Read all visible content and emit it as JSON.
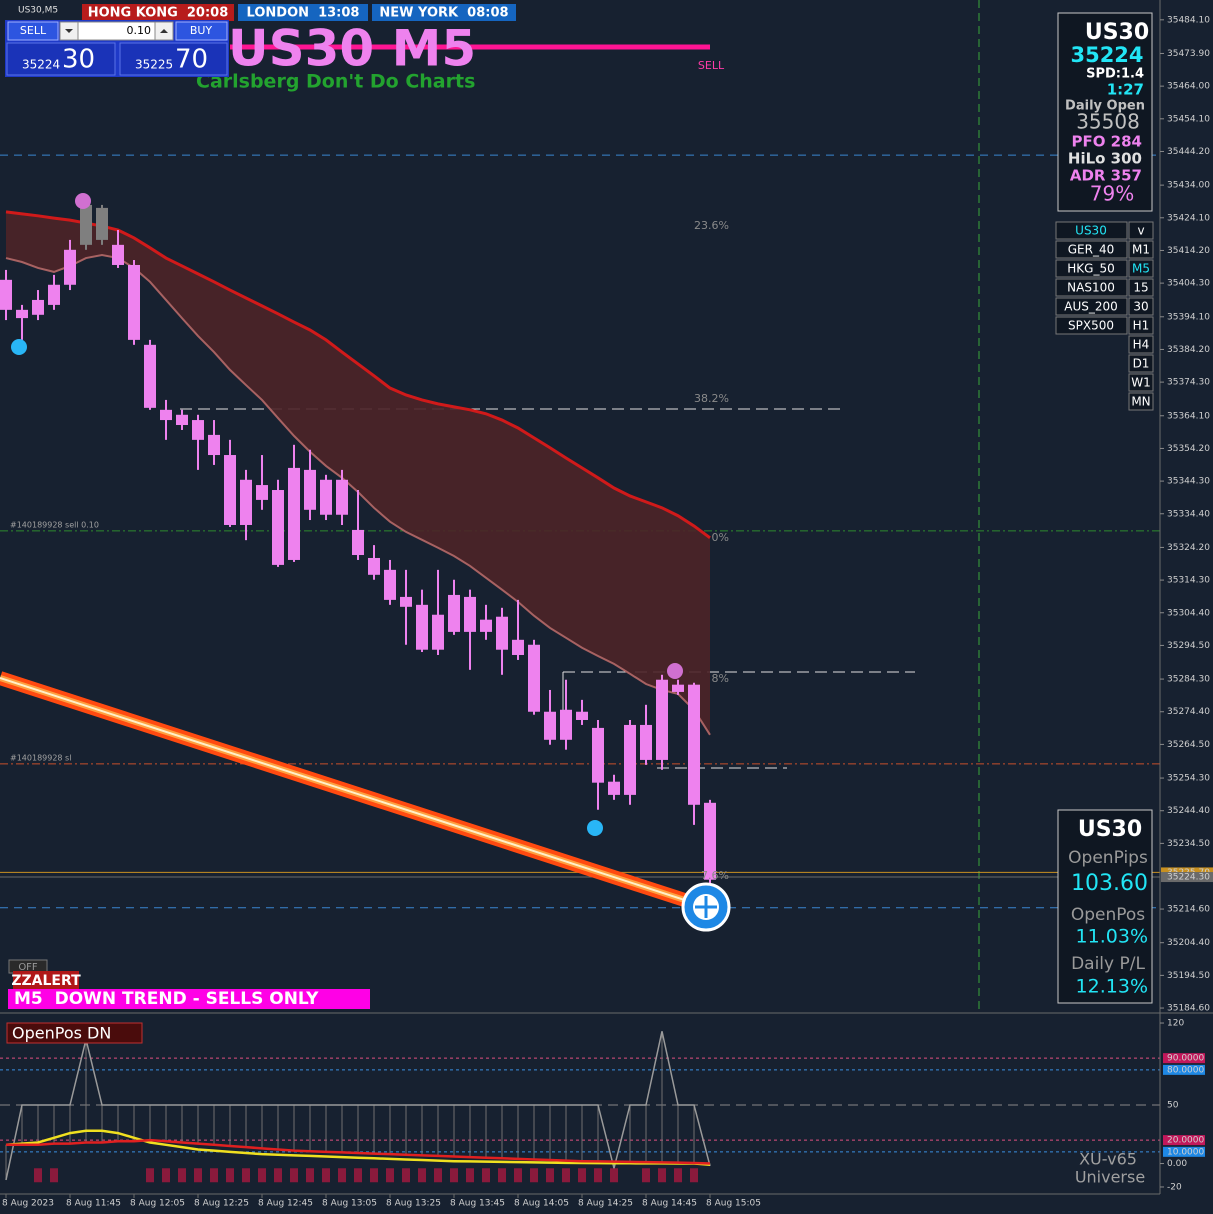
{
  "ui": {
    "window_title": "US30,M5",
    "sessions": {
      "hong_kong": "HONG KONG  20:08",
      "london": "LONDON  13:08",
      "new_york": "NEW YORK  08:08"
    },
    "trade_panel": {
      "sell": "SELL",
      "buy": "BUY",
      "lot": "0.10",
      "bid_big": "35224",
      "bid_small": "30",
      "ask_big": "35225",
      "ask_small": "70"
    },
    "title": "US30 M5",
    "subtitle": "Carlsberg Don't Do Charts",
    "sell_tag": "SELL",
    "fib": {
      "f236": "23.6%",
      "f382": "38.2%",
      "f0": "0%",
      "f8": "8%",
      "f76": "7.6%"
    },
    "info_panel": {
      "symbol": "US30",
      "price": "35224",
      "spread": "SPD:1.4",
      "timer": "1:27",
      "daily_open_label": "Daily Open",
      "daily_open": "35508",
      "pfo": "PFO 284",
      "hilo": "HiLo 300",
      "adr": "ADR 357",
      "adr_pct": "79%"
    },
    "symbols": [
      [
        "US30",
        "v"
      ],
      [
        "GER_40",
        "M1"
      ],
      [
        "HKG_50",
        "M5"
      ],
      [
        "NAS100",
        "15"
      ],
      [
        "AUS_200",
        "30"
      ],
      [
        "SPX500",
        "H1"
      ],
      [
        null,
        "H4"
      ],
      [
        null,
        "D1"
      ],
      [
        null,
        "W1"
      ],
      [
        null,
        "MN"
      ]
    ],
    "pos_panel": {
      "symbol": "US30",
      "open_pips_label": "OpenPips",
      "open_pips": "103.60",
      "open_pos_label": "OpenPos",
      "open_pos": "11.03%",
      "daily_pl_label": "Daily P/L",
      "daily_pl": "12.13%"
    },
    "off": "OFF",
    "zzalert": "ZZALERT",
    "trend": "M5  DOWN TREND - SELLS ONLY",
    "indicator": {
      "name": "OpenPos DN",
      "version": "XU-v65",
      "universe": "Universe"
    }
  },
  "chart_data": [
    {
      "type": "candlestick",
      "x": [
        "8 Aug 2023",
        null,
        null,
        null,
        "8 Aug 11:45",
        null,
        null,
        null,
        "8 Aug 12:05",
        null,
        null,
        null,
        "8 Aug 12:25",
        null,
        null,
        null,
        "8 Aug 12:45",
        null,
        null,
        null,
        "8 Aug 13:05",
        null,
        null,
        null,
        "8 Aug 13:25",
        null,
        null,
        null,
        "8 Aug 13:45",
        null,
        null,
        null,
        "8 Aug 14:05",
        null,
        null,
        null,
        "8 Aug 14:25",
        null,
        null,
        null,
        "8 Aug 14:45",
        null,
        null,
        null,
        "8 Aug 15:05"
      ],
      "open": [
        35405.3,
        35396.2,
        35399.2,
        35403.8,
        35414.4,
        35415.9,
        35417.4,
        35415.9,
        35409.8,
        35385.6,
        35365.9,
        35364.4,
        35362.8,
        35358.3,
        35352.2,
        35344.7,
        35343.1,
        35341.6,
        35348.3,
        35347.7,
        35344.7,
        35344.7,
        35329.5,
        35321.0,
        35317.4,
        35309.2,
        35306.8,
        35303.8,
        35309.8,
        35309.2,
        35302.3,
        35303.2,
        35296.2,
        35294.7,
        35274.4,
        35275.0,
        35274.4,
        35269.5,
        35253.2,
        35270.4,
        35270.4,
        35284.1,
        35282.6,
        35282.6,
        35246.8
      ],
      "high": [
        35408.3,
        35397.7,
        35402.2,
        35406.8,
        35417.4,
        35429.5,
        35428.0,
        35420.4,
        35411.3,
        35387.1,
        35368.9,
        35365.9,
        35364.4,
        35362.8,
        35356.8,
        35347.7,
        35352.2,
        35344.7,
        35355.3,
        35353.8,
        35346.2,
        35347.7,
        35341.6,
        35324.9,
        35320.4,
        35317.4,
        35311.4,
        35317.4,
        35314.4,
        35311.4,
        35306.8,
        35305.9,
        35308.3,
        35296.2,
        35281.0,
        35284.1,
        35278.0,
        35271.9,
        35255.3,
        35271.9,
        35276.5,
        35285.6,
        35284.1,
        35283.2,
        35247.7
      ],
      "low": [
        35393.1,
        35387.1,
        35393.1,
        35396.2,
        35402.2,
        35414.4,
        35415.9,
        35408.9,
        35385.6,
        35365.9,
        35356.8,
        35359.8,
        35347.7,
        35349.2,
        35330.4,
        35326.4,
        35335.6,
        35318.3,
        35319.8,
        35332.5,
        35332.5,
        35331.0,
        35320.4,
        35314.4,
        35306.8,
        35294.7,
        35292.5,
        35291.6,
        35297.7,
        35287.1,
        35296.2,
        35285.6,
        35290.1,
        35273.5,
        35264.4,
        35262.9,
        35270.4,
        35244.7,
        35247.7,
        35246.2,
        35258.3,
        35256.8,
        35279.5,
        35240.1,
        35222.0
      ],
      "close": [
        35396.2,
        35393.7,
        35394.7,
        35397.7,
        35403.8,
        35428.0,
        35427.1,
        35409.8,
        35387.1,
        35366.5,
        35362.8,
        35361.3,
        35356.8,
        35352.2,
        35331.0,
        35331.0,
        35338.6,
        35318.9,
        35320.4,
        35335.6,
        35334.1,
        35334.1,
        35321.9,
        35315.9,
        35308.3,
        35306.2,
        35293.2,
        35293.2,
        35298.6,
        35298.6,
        35298.6,
        35293.2,
        35291.6,
        35274.4,
        35265.9,
        35265.9,
        35271.9,
        35252.9,
        35249.2,
        35249.2,
        35259.8,
        35259.8,
        35280.4,
        35246.2,
        35223.5
      ],
      "up_color": "#7f7f7f",
      "down_color": "#ee82ee",
      "ribbon_upper": [
        35425.9,
        35425.3,
        35424.7,
        35424.0,
        35423.4,
        35422.5,
        35421.6,
        35420.4,
        35418.0,
        35415.0,
        35411.9,
        35409.5,
        35407.1,
        35404.7,
        35402.2,
        35399.8,
        35397.4,
        35395.0,
        35392.5,
        35390.1,
        35387.1,
        35383.4,
        35379.8,
        35376.2,
        35372.5,
        35370.4,
        35368.9,
        35367.7,
        35366.8,
        35365.9,
        35364.7,
        35362.8,
        35360.4,
        35357.4,
        35354.4,
        35351.3,
        35348.3,
        35345.3,
        35342.2,
        35339.8,
        35338.0,
        35336.2,
        35333.8,
        35330.7,
        35327.1
      ],
      "ribbon_lower": [
        35411.9,
        35410.7,
        35408.9,
        35407.7,
        35409.5,
        35411.9,
        35412.8,
        35411.9,
        35408.9,
        35404.7,
        35399.2,
        35393.7,
        35388.3,
        35383.4,
        35378.0,
        35373.4,
        35368.9,
        35363.4,
        35358.0,
        35353.2,
        35348.9,
        35345.3,
        35341.0,
        35336.2,
        35332.0,
        35328.9,
        35326.5,
        35324.1,
        35321.6,
        35318.6,
        35315.0,
        35311.4,
        35307.7,
        35303.5,
        35299.8,
        35296.8,
        35293.8,
        35291.3,
        35288.9,
        35285.9,
        35282.8,
        35281.0,
        35279.8,
        35275.0,
        35267.4
      ],
      "ribbon_upper_color": "#d01a1a",
      "ribbon_lower_color": "#a86262",
      "ribbon_fill": "#4d2328",
      "ylim": [
        35183.4,
        35489.5
      ],
      "yticks": [
        {
          "value": 35484.1,
          "label": "35484.10"
        },
        {
          "value": 35473.9,
          "label": "35473.90"
        },
        {
          "value": 35464.0,
          "label": "35464.00"
        },
        {
          "value": 35454.1,
          "label": "35454.10"
        },
        {
          "value": 35444.2,
          "label": "35444.20"
        },
        {
          "value": 35434.0,
          "label": "35434.00"
        },
        {
          "value": 35424.1,
          "label": "35424.10"
        },
        {
          "value": 35414.2,
          "label": "35414.20"
        },
        {
          "value": 35404.3,
          "label": "35404.30"
        },
        {
          "value": 35394.1,
          "label": "35394.10"
        },
        {
          "value": 35384.2,
          "label": "35384.20"
        },
        {
          "value": 35374.3,
          "label": "35374.30"
        },
        {
          "value": 35364.1,
          "label": "35364.10"
        },
        {
          "value": 35354.2,
          "label": "35354.20"
        },
        {
          "value": 35344.3,
          "label": "35344.30"
        },
        {
          "value": 35334.4,
          "label": "35334.40"
        },
        {
          "value": 35324.2,
          "label": "35324.20"
        },
        {
          "value": 35314.3,
          "label": "35314.30"
        },
        {
          "value": 35304.4,
          "label": "35304.40"
        },
        {
          "value": 35294.5,
          "label": "35294.50"
        },
        {
          "value": 35284.3,
          "label": "35284.30"
        },
        {
          "value": 35274.4,
          "label": "35274.40"
        },
        {
          "value": 35264.5,
          "label": "35264.50"
        },
        {
          "value": 35254.3,
          "label": "35254.30"
        },
        {
          "value": 35244.4,
          "label": "35244.40"
        },
        {
          "value": 35234.5,
          "label": "35234.50"
        },
        {
          "value": 35214.6,
          "label": "35214.60"
        },
        {
          "value": 35204.4,
          "label": "35204.40"
        },
        {
          "value": 35194.5,
          "label": "35194.50"
        },
        {
          "value": 35184.6,
          "label": "35184.60"
        }
      ],
      "levels": [
        {
          "value": 35443.1,
          "color": "#3a86d0",
          "dash": "8 6"
        },
        {
          "value": 35215.0,
          "color": "#3a86d0",
          "dash": "8 6"
        },
        {
          "value": 35329.2,
          "label": "#140189928 sell 0.10",
          "color": "#2e8b2e",
          "dash": "8 3 2 3"
        },
        {
          "value": 35258.6,
          "label": "#140189928 sl",
          "color": "#c8502a",
          "dash": "8 3 2 3"
        }
      ],
      "price_markers": [
        {
          "value": 35225.7,
          "label": "35225.70",
          "color": "#c89020"
        },
        {
          "value": 35224.3,
          "label": "35224.30",
          "color": "#6a6a6a"
        }
      ]
    },
    {
      "type": "line",
      "series": [
        {
          "color": "#9a9a9a",
          "values": [
            -14,
            50,
            50,
            50,
            50,
            106,
            50,
            50,
            50,
            50,
            50,
            50,
            50,
            50,
            50,
            50,
            50,
            50,
            50,
            50,
            50,
            50,
            50,
            50,
            50,
            50,
            50,
            50,
            50,
            50,
            50,
            50,
            50,
            50,
            50,
            50,
            50,
            50,
            -4,
            50,
            50,
            113,
            50,
            50,
            -2
          ]
        },
        {
          "color": "#f0e020",
          "values": [
            16,
            17,
            18,
            22,
            26,
            28,
            28,
            26,
            22,
            18,
            16,
            14,
            12,
            11,
            10,
            9,
            8,
            7.5,
            7,
            6.5,
            6,
            5.5,
            5,
            4.5,
            4,
            3.5,
            3,
            2.5,
            2,
            1.8,
            1.6,
            1.4,
            1.2,
            1,
            0.8,
            0.6,
            0.5,
            0.4,
            0.3,
            0.2,
            0.1,
            0.1,
            0,
            0,
            -1
          ]
        },
        {
          "color": "#e02020",
          "values": [
            16,
            16,
            16,
            17,
            17,
            18,
            18,
            19,
            19,
            20,
            19,
            18,
            17,
            16,
            15,
            14,
            13,
            12,
            11,
            10.5,
            10,
            9.5,
            9,
            8.5,
            8,
            7.5,
            7,
            6.5,
            6,
            5.5,
            5,
            4.5,
            4,
            3.5,
            3,
            2.5,
            2,
            1.8,
            1.6,
            1.4,
            1.2,
            1,
            0.8,
            0.5,
            0
          ]
        }
      ],
      "histogram": {
        "color": "#8a1a3c",
        "values": [
          null,
          null,
          -10,
          -10,
          null,
          null,
          null,
          null,
          null,
          -10,
          -10,
          -10,
          -10,
          -10,
          -10,
          -10,
          -10,
          -10,
          -10,
          -10,
          -10,
          -10,
          -10,
          -10,
          -10,
          -10,
          -10,
          -10,
          -10,
          -10,
          -10,
          -10,
          -10,
          -10,
          -10,
          -10,
          -10,
          -10,
          -10,
          null,
          -10,
          -10,
          -10,
          -10,
          null
        ]
      },
      "ylim": [
        -24.3,
        126
      ],
      "yticks": [
        120,
        {
          "value": 90,
          "label": "90.0000"
        },
        {
          "value": 80,
          "label": "80.0000"
        },
        50,
        {
          "value": 20,
          "label": "20.0000"
        },
        {
          "value": 10,
          "label": "10.0000"
        },
        {
          "value": 0,
          "label": "0.00"
        },
        -20
      ]
    }
  ]
}
